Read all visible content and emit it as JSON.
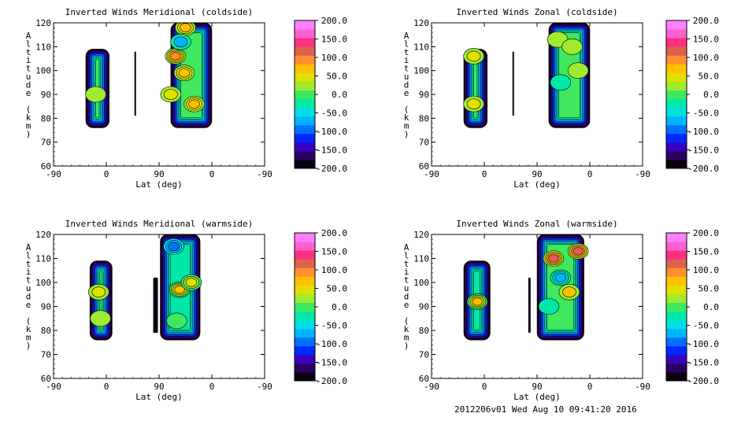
{
  "footer": {
    "stamp": "2012206v01 Wed Aug 10 09:41:20 2016"
  },
  "colorbar_colors": [
    "#0a0010",
    "#2a0060",
    "#3a00c0",
    "#0028ff",
    "#0070ff",
    "#00b4ff",
    "#00e0e0",
    "#00e8a8",
    "#40e860",
    "#a0ea30",
    "#e0e000",
    "#ffc000",
    "#ff9030",
    "#e06050",
    "#ff3080",
    "#ff60d0",
    "#ff80ff"
  ],
  "chart_data": [
    {
      "type": "heatmap",
      "title": "Inverted Winds Meridional (coldside)",
      "xlabel": "Lat (deg)",
      "ylabel": "Altitude (km)",
      "x_ticks": [
        "-90",
        "0",
        "90",
        "0",
        "-90"
      ],
      "y_ticks": [
        "60",
        "70",
        "80",
        "90",
        "100",
        "110",
        "120"
      ],
      "ylim": [
        60,
        120
      ],
      "colorbar": {
        "ticks": [
          "200.0",
          "150.0",
          "100.0",
          "50.0",
          "0.0",
          "-50.0",
          "-100.0",
          "-150.0",
          "-200.0"
        ],
        "range": [
          -200,
          200
        ]
      },
      "regions": [
        {
          "lat": [
            -35,
            5
          ],
          "alt": [
            76,
            109
          ],
          "value": 0,
          "peaks": [
            {
              "lat": -18,
              "alt": 90,
              "value": 25
            }
          ]
        },
        {
          "lat": [
            48,
            50
          ],
          "alt": [
            81,
            108
          ],
          "value": -190,
          "peaks": []
        },
        {
          "lat": [
            110,
            180
          ],
          "alt": [
            76,
            120
          ],
          "value": -10,
          "peaks": [
            {
              "lat": 118,
              "alt": 106,
              "value": 100
            },
            {
              "lat": 133,
              "alt": 99,
              "value": 60
            },
            {
              "lat": 135,
              "alt": 118,
              "value": 60
            },
            {
              "lat": 150,
              "alt": 86,
              "value": 60
            },
            {
              "lat": 110,
              "alt": 90,
              "value": 40
            },
            {
              "lat": 127,
              "alt": 112,
              "value": -60
            }
          ]
        }
      ]
    },
    {
      "type": "heatmap",
      "title": "Inverted Winds Zonal (coldside)",
      "xlabel": "Lat (deg)",
      "ylabel": "Altitude (km)",
      "x_ticks": [
        "-90",
        "0",
        "90",
        "0",
        "-90"
      ],
      "y_ticks": [
        "60",
        "70",
        "80",
        "90",
        "100",
        "110",
        "120"
      ],
      "ylim": [
        60,
        120
      ],
      "colorbar": {
        "ticks": [
          "200.0",
          "150.0",
          "100.0",
          "50.0",
          "0.0",
          "-50.0",
          "-100.0",
          "-150.0",
          "-200.0"
        ],
        "range": [
          -200,
          200
        ]
      },
      "regions": [
        {
          "lat": [
            -35,
            5
          ],
          "alt": [
            76,
            109
          ],
          "value": 0,
          "peaks": [
            {
              "lat": -18,
              "alt": 106,
              "value": 45
            },
            {
              "lat": -18,
              "alt": 86,
              "value": 45
            }
          ]
        },
        {
          "lat": [
            48,
            50
          ],
          "alt": [
            81,
            108
          ],
          "value": -190,
          "peaks": []
        },
        {
          "lat": [
            110,
            180
          ],
          "alt": [
            76,
            120
          ],
          "value": 10,
          "peaks": [
            {
              "lat": 125,
              "alt": 113,
              "value": 40
            },
            {
              "lat": 150,
              "alt": 110,
              "value": 35
            },
            {
              "lat": 160,
              "alt": 100,
              "value": 40
            },
            {
              "lat": 130,
              "alt": 95,
              "value": -5
            }
          ]
        }
      ]
    },
    {
      "type": "heatmap",
      "title": "Inverted Winds Meridional (warmside)",
      "xlabel": "Lat (deg)",
      "ylabel": "Altitude (km)",
      "x_ticks": [
        "-90",
        "0",
        "90",
        "0",
        "-90"
      ],
      "y_ticks": [
        "60",
        "70",
        "80",
        "90",
        "100",
        "110",
        "120"
      ],
      "ylim": [
        60,
        120
      ],
      "colorbar": {
        "ticks": [
          "200.0",
          "150.0",
          "100.0",
          "50.0",
          "0.0",
          "-50.0",
          "-100.0",
          "-150.0",
          "-200.0"
        ],
        "range": [
          -200,
          200
        ]
      },
      "regions": [
        {
          "lat": [
            -28,
            10
          ],
          "alt": [
            76,
            109
          ],
          "value": 0,
          "peaks": [
            {
              "lat": -13,
              "alt": 96,
              "value": 60
            },
            {
              "lat": -10,
              "alt": 85,
              "value": 15
            }
          ]
        },
        {
          "lat": [
            80,
            88
          ],
          "alt": [
            79,
            102
          ],
          "value": -190,
          "peaks": []
        },
        {
          "lat": [
            92,
            160
          ],
          "alt": [
            76,
            120
          ],
          "value": -20,
          "peaks": [
            {
              "lat": 125,
              "alt": 97,
              "value": 70
            },
            {
              "lat": 145,
              "alt": 100,
              "value": 50
            },
            {
              "lat": 115,
              "alt": 115,
              "value": -100
            },
            {
              "lat": 120,
              "alt": 84,
              "value": -15
            }
          ]
        }
      ]
    },
    {
      "type": "heatmap",
      "title": "Inverted Winds Zonal (warmside)",
      "xlabel": "Lat (deg)",
      "ylabel": "Altitude (km)",
      "x_ticks": [
        "-90",
        "0",
        "90",
        "0",
        "-90"
      ],
      "y_ticks": [
        "60",
        "70",
        "80",
        "90",
        "100",
        "110",
        "120"
      ],
      "ylim": [
        60,
        120
      ],
      "colorbar": {
        "ticks": [
          "200.0",
          "150.0",
          "100.0",
          "50.0",
          "0.0",
          "-50.0",
          "-100.0",
          "-150.0",
          "-200.0"
        ],
        "range": [
          -200,
          200
        ]
      },
      "regions": [
        {
          "lat": [
            -35,
            10
          ],
          "alt": [
            76,
            109
          ],
          "value": -20,
          "peaks": [
            {
              "lat": -12,
              "alt": 92,
              "value": 70
            }
          ]
        },
        {
          "lat": [
            75,
            79
          ],
          "alt": [
            79,
            102
          ],
          "value": -190,
          "peaks": []
        },
        {
          "lat": [
            90,
            170
          ],
          "alt": [
            76,
            120
          ],
          "value": 10,
          "peaks": [
            {
              "lat": 118,
              "alt": 110,
              "value": 120
            },
            {
              "lat": 160,
              "alt": 113,
              "value": 100
            },
            {
              "lat": 145,
              "alt": 96,
              "value": 60
            },
            {
              "lat": 110,
              "alt": 90,
              "value": -20
            },
            {
              "lat": 130,
              "alt": 102,
              "value": -60
            }
          ]
        }
      ]
    }
  ]
}
